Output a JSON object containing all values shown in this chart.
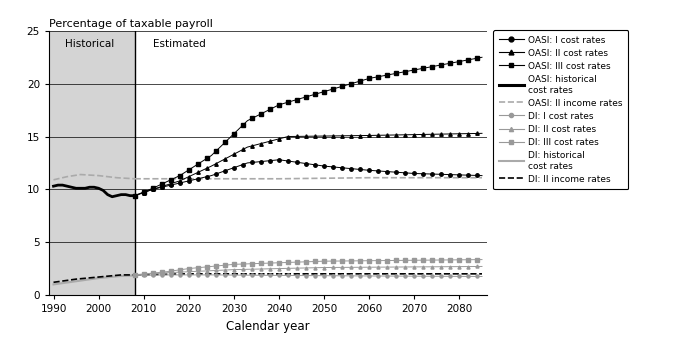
{
  "title": "Percentage of taxable payroll",
  "xlabel": "Calendar year",
  "xlim": [
    1989,
    2086
  ],
  "ylim": [
    0,
    25
  ],
  "yticks": [
    0,
    5,
    10,
    15,
    20,
    25
  ],
  "xticks": [
    1990,
    2000,
    2010,
    2020,
    2030,
    2040,
    2050,
    2060,
    2070,
    2080
  ],
  "historical_end": 2008,
  "historical_label": "Historical",
  "estimated_label": "Estimated",
  "bg_historical": "#d4d4d4",
  "bg_estimated": "#ffffff",
  "figsize": [
    7.0,
    3.43
  ],
  "dpi": 100,
  "oasi_color": "#000000",
  "di_color": "#999999",
  "di_hist_color": "#aaaaaa",
  "oasi_income_color": "#aaaaaa",
  "di_income_color": "#000000"
}
